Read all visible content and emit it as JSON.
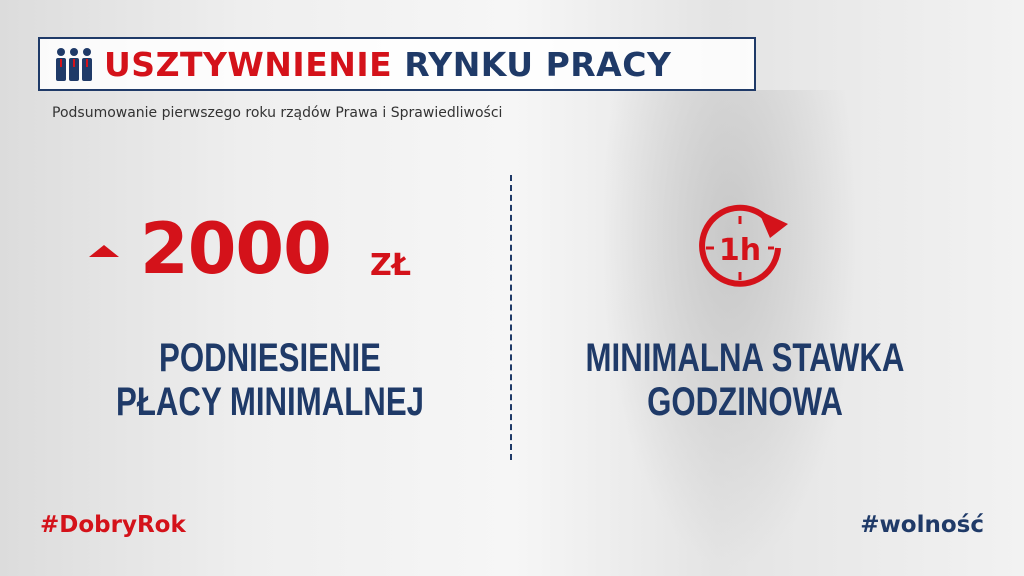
{
  "header": {
    "title_red": "USZTYWNIENIE",
    "title_navy": "RYNKU PRACY",
    "subtitle": "Podsumowanie pierwszego roku rządów Prawa i Sprawiedliwości",
    "icon": "people-group-icon"
  },
  "left": {
    "value": "2000",
    "unit": "ZŁ",
    "label_line1": "PODNIESIENIE",
    "label_line2": "PŁACY MINIMALNEJ",
    "icon": "arrow-up-icon"
  },
  "right": {
    "clock_text": "1h",
    "label_line1": "MINIMALNA STAWKA",
    "label_line2": "GODZINOWA",
    "icon": "clock-rotate-icon"
  },
  "footer": {
    "left_tag": "#DobryRok",
    "right_tag": "#wolność"
  },
  "colors": {
    "red": "#d4121a",
    "navy": "#1f3a68"
  }
}
